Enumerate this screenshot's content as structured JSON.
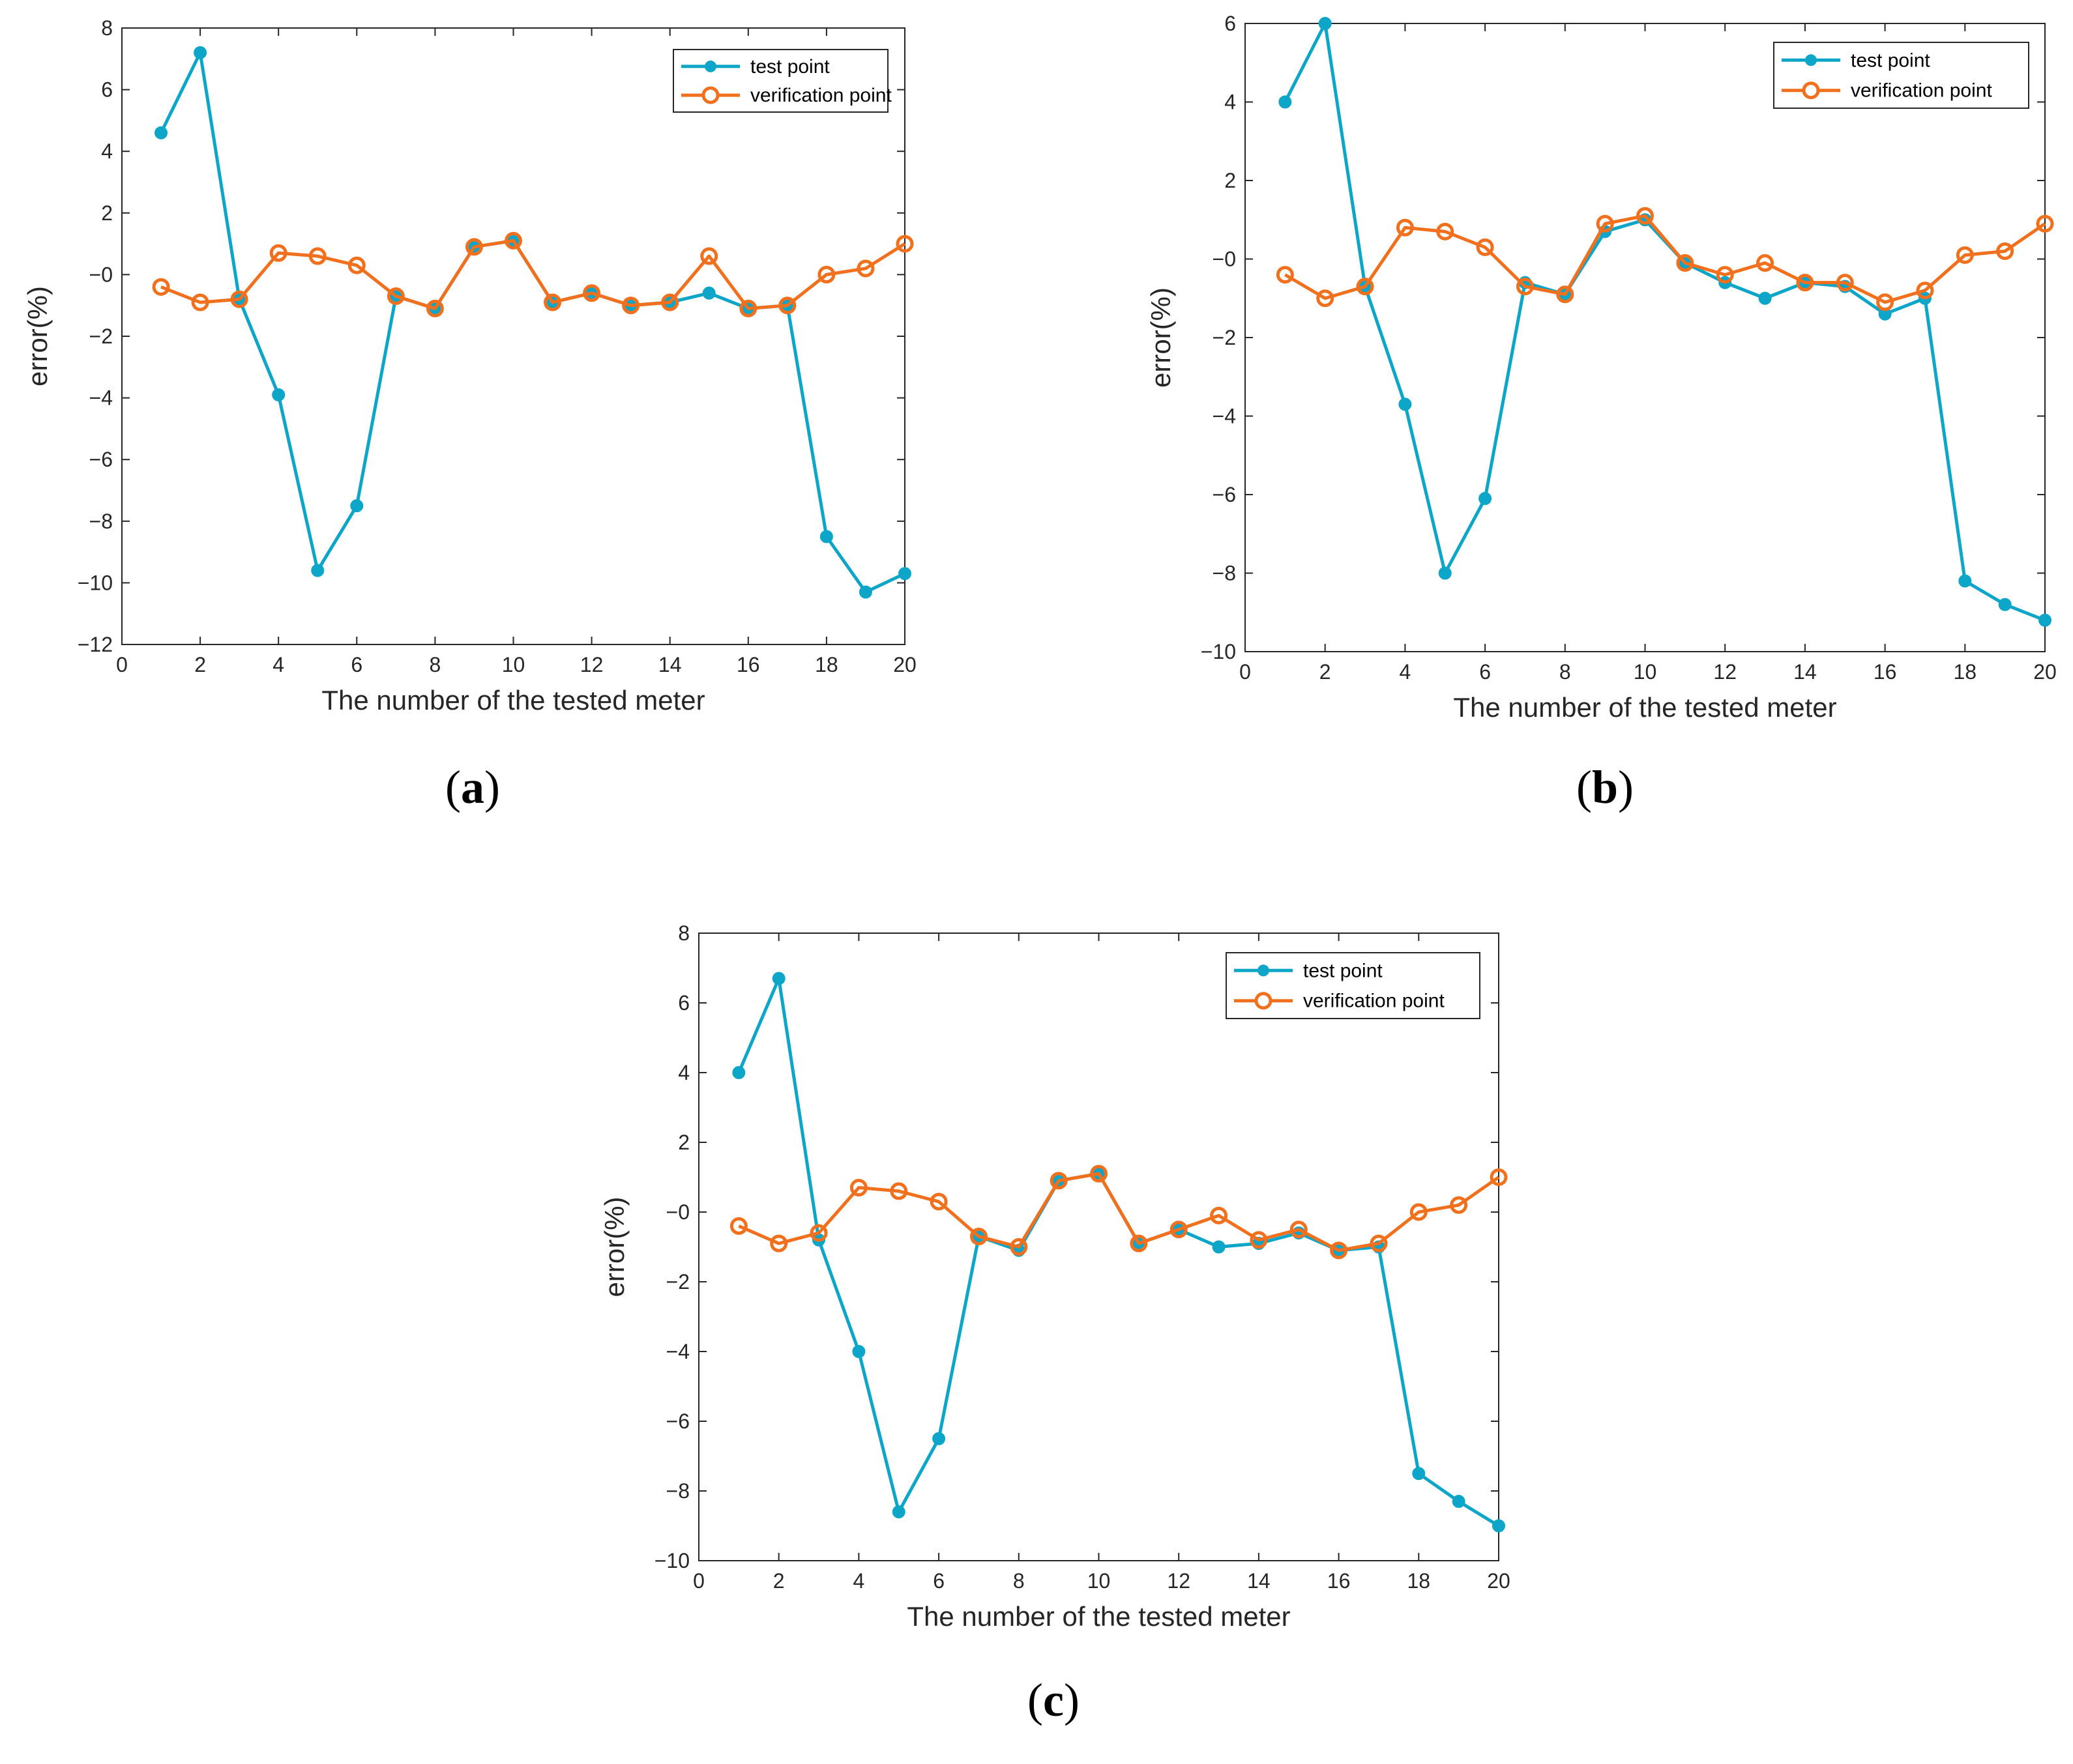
{
  "colors": {
    "test": "#0da6c8",
    "verification": "#f0701d",
    "axis": "#262626",
    "background": "#ffffff"
  },
  "chart_data": [
    {
      "id": "a",
      "type": "line",
      "panel_label": "a",
      "xlabel": "The number of the tested meter",
      "ylabel": "error(%)",
      "xlim": [
        0,
        20
      ],
      "ylim": [
        -12,
        8
      ],
      "xticks": [
        0,
        2,
        4,
        6,
        8,
        10,
        12,
        14,
        16,
        18,
        20
      ],
      "yticks": [
        -12,
        -10,
        -8,
        -6,
        -4,
        -2,
        0,
        2,
        4,
        6,
        8
      ],
      "legend_position": "top-right",
      "x": [
        1,
        2,
        3,
        4,
        5,
        6,
        7,
        8,
        9,
        10,
        11,
        12,
        13,
        14,
        15,
        16,
        17,
        18,
        19,
        20
      ],
      "series": [
        {
          "name": "test point",
          "marker": "filled-dot",
          "values": [
            4.6,
            7.2,
            -0.8,
            -3.9,
            -9.6,
            -7.5,
            -0.7,
            -1.1,
            0.9,
            1.1,
            -0.9,
            -0.6,
            -1.0,
            -0.9,
            -0.6,
            -1.1,
            -1.0,
            -8.5,
            -10.3,
            -9.7
          ]
        },
        {
          "name": "verification point",
          "marker": "open-circle",
          "values": [
            -0.4,
            -0.9,
            -0.8,
            0.7,
            0.6,
            0.3,
            -0.7,
            -1.1,
            0.9,
            1.1,
            -0.9,
            -0.6,
            -1.0,
            -0.9,
            0.6,
            -1.1,
            -1.0,
            0.0,
            0.2,
            1.0
          ]
        }
      ]
    },
    {
      "id": "b",
      "type": "line",
      "panel_label": "b",
      "xlabel": "The number of the tested meter",
      "ylabel": "error(%)",
      "xlim": [
        0,
        20
      ],
      "ylim": [
        -10,
        6
      ],
      "xticks": [
        0,
        2,
        4,
        6,
        8,
        10,
        12,
        14,
        16,
        18,
        20
      ],
      "yticks": [
        -10,
        -8,
        -6,
        -4,
        -2,
        0,
        2,
        4,
        6
      ],
      "legend_position": "top-right",
      "x": [
        1,
        2,
        3,
        4,
        5,
        6,
        7,
        8,
        9,
        10,
        11,
        12,
        13,
        14,
        15,
        16,
        17,
        18,
        19,
        20
      ],
      "series": [
        {
          "name": "test point",
          "marker": "filled-dot",
          "values": [
            4.0,
            6.0,
            -0.7,
            -3.7,
            -8.0,
            -6.1,
            -0.6,
            -0.9,
            0.7,
            1.0,
            -0.1,
            -0.6,
            -1.0,
            -0.6,
            -0.7,
            -1.4,
            -1.0,
            -8.2,
            -8.8,
            -9.2
          ]
        },
        {
          "name": "verification point",
          "marker": "open-circle",
          "values": [
            -0.4,
            -1.0,
            -0.7,
            0.8,
            0.7,
            0.3,
            -0.7,
            -0.9,
            0.9,
            1.1,
            -0.1,
            -0.4,
            -0.1,
            -0.6,
            -0.6,
            -1.1,
            -0.8,
            0.1,
            0.2,
            0.9
          ]
        }
      ]
    },
    {
      "id": "c",
      "type": "line",
      "panel_label": "c",
      "xlabel": "The number of the tested meter",
      "ylabel": "error(%)",
      "xlim": [
        0,
        20
      ],
      "ylim": [
        -10,
        8
      ],
      "xticks": [
        0,
        2,
        4,
        6,
        8,
        10,
        12,
        14,
        16,
        18,
        20
      ],
      "yticks": [
        -10,
        -8,
        -6,
        -4,
        -2,
        0,
        2,
        4,
        6,
        8
      ],
      "legend_position": "top-right",
      "x": [
        1,
        2,
        3,
        4,
        5,
        6,
        7,
        8,
        9,
        10,
        11,
        12,
        13,
        14,
        15,
        16,
        17,
        18,
        19,
        20
      ],
      "series": [
        {
          "name": "test point",
          "marker": "filled-dot",
          "values": [
            4.0,
            6.7,
            -0.8,
            -4.0,
            -8.6,
            -6.5,
            -0.7,
            -1.1,
            0.9,
            1.1,
            -0.9,
            -0.5,
            -1.0,
            -0.9,
            -0.6,
            -1.1,
            -1.0,
            -7.5,
            -8.3,
            -9.0
          ]
        },
        {
          "name": "verification point",
          "marker": "open-circle",
          "values": [
            -0.4,
            -0.9,
            -0.6,
            0.7,
            0.6,
            0.3,
            -0.7,
            -1.0,
            0.9,
            1.1,
            -0.9,
            -0.5,
            -0.1,
            -0.8,
            -0.5,
            -1.1,
            -0.9,
            0.0,
            0.2,
            1.0
          ]
        }
      ]
    }
  ]
}
